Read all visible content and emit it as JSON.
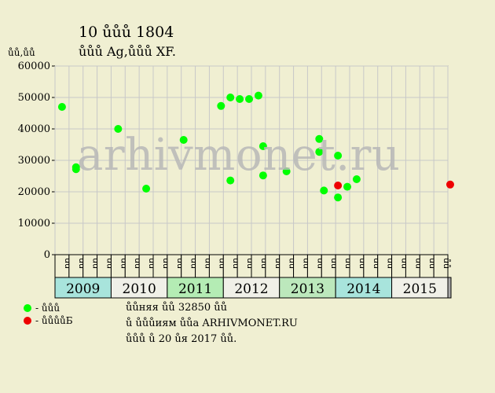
{
  "chart_data": {
    "type": "scatter",
    "title": "10 ůůů 1804",
    "subtitle": "ůůů Ag,ůůů XF.",
    "ylabel": "ůů,ůů",
    "ylim": [
      0,
      60000
    ],
    "yticks": [
      0,
      10000,
      20000,
      30000,
      40000,
      50000,
      60000
    ],
    "grid": true,
    "years": [
      "2009",
      "2010",
      "2011",
      "2012",
      "2013",
      "2014",
      "2015"
    ],
    "year_colors": [
      "#a8e4dc",
      "#f0f0e8",
      "#b4ecb4",
      "#f0f0e8",
      "#bce8bc",
      "#a8e4dc",
      "#f0f0e8"
    ],
    "months": [
      "ůů",
      "ůů",
      "ůů",
      "ůů",
      "ůů",
      "ůů",
      "ůů",
      "ůů",
      "ůů",
      "ůů",
      "ůů",
      "ůů",
      "ůů",
      "ůů",
      "ůů",
      "ůů",
      "ůů",
      "ůů",
      "ůů",
      "ůů",
      "ůů",
      "ůů",
      "ůů",
      "ůů",
      "ůů",
      "ůů",
      "ůů",
      "ůů"
    ],
    "x_start": "2009-01",
    "x_end": "2016-01",
    "series": [
      {
        "color": "#00ff00",
        "points": [
          {
            "x": "2009-01",
            "y": 47000
          },
          {
            "x": "2009-04",
            "y": 27800
          },
          {
            "x": "2009-04",
            "y": 27200
          },
          {
            "x": "2010-01",
            "y": 40000
          },
          {
            "x": "2010-07",
            "y": 21000
          },
          {
            "x": "2011-03",
            "y": 36500
          },
          {
            "x": "2011-11",
            "y": 47300
          },
          {
            "x": "2012-01",
            "y": 50000
          },
          {
            "x": "2012-01",
            "y": 23600
          },
          {
            "x": "2012-03",
            "y": 49500
          },
          {
            "x": "2012-05",
            "y": 49500
          },
          {
            "x": "2012-07",
            "y": 50600
          },
          {
            "x": "2012-08",
            "y": 34500
          },
          {
            "x": "2012-08",
            "y": 25200
          },
          {
            "x": "2013-01",
            "y": 26500
          },
          {
            "x": "2013-08",
            "y": 36800
          },
          {
            "x": "2013-08",
            "y": 32700
          },
          {
            "x": "2013-09",
            "y": 20400
          },
          {
            "x": "2013-12",
            "y": 31500
          },
          {
            "x": "2013-12",
            "y": 18200
          },
          {
            "x": "2014-02",
            "y": 21600
          },
          {
            "x": "2014-04",
            "y": 24000
          }
        ]
      },
      {
        "color": "#ee0000",
        "points": [
          {
            "x": "2013-12",
            "y": 22000
          },
          {
            "x": "2015-12",
            "y": 22300
          }
        ]
      }
    ]
  },
  "legend": [
    {
      "label": "- ůůů",
      "color": "#00ff00"
    },
    {
      "label": "- ůůůůБ",
      "color": "#ee0000"
    }
  ],
  "footer": {
    "line1": "ůůняя ůů 32850 ůů",
    "line2": "ů ůůůиям ůůа ARHIVMONET.RU",
    "line3": "ůůů ů 20 ůя 2017 ůů."
  },
  "watermark": "arhivmonet.ru"
}
